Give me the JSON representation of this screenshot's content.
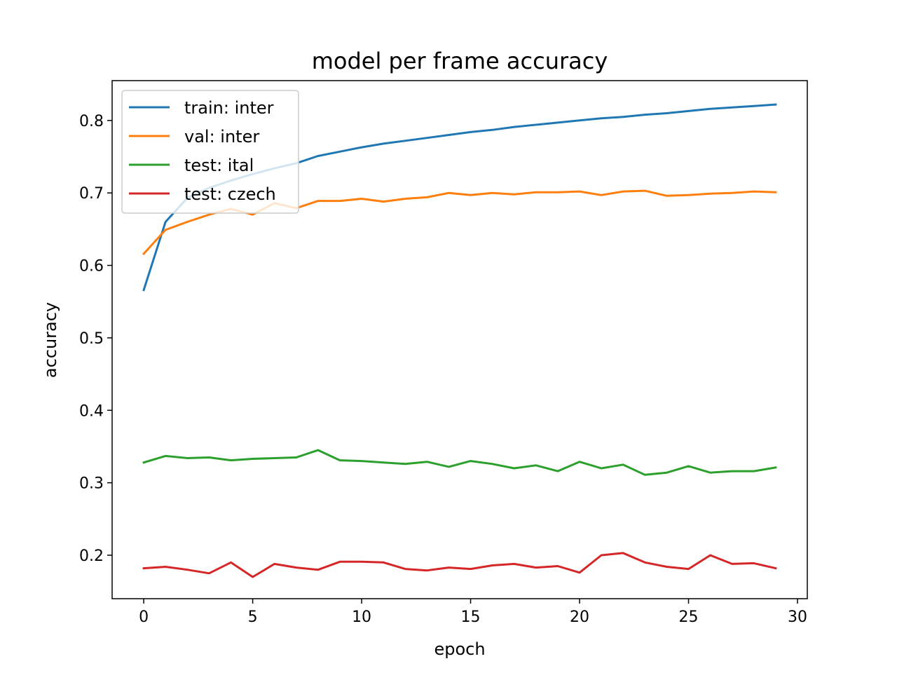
{
  "chart_data": {
    "type": "line",
    "title": "model per frame accuracy",
    "xlabel": "epoch",
    "ylabel": "accuracy",
    "xlim": [
      -1.45,
      30.45
    ],
    "ylim": [
      0.14,
      0.855
    ],
    "xticks": [
      0,
      5,
      10,
      15,
      20,
      25,
      30
    ],
    "xtick_labels": [
      "0",
      "5",
      "10",
      "15",
      "20",
      "25",
      "30"
    ],
    "yticks": [
      0.2,
      0.3,
      0.4,
      0.5,
      0.6,
      0.7,
      0.8
    ],
    "ytick_labels": [
      "0.2",
      "0.3",
      "0.4",
      "0.5",
      "0.6",
      "0.7",
      "0.8"
    ],
    "legend_position": "top-left",
    "grid": false,
    "x": [
      0,
      1,
      2,
      3,
      4,
      5,
      6,
      7,
      8,
      9,
      10,
      11,
      12,
      13,
      14,
      15,
      16,
      17,
      18,
      19,
      20,
      21,
      22,
      23,
      24,
      25,
      26,
      27,
      28,
      29
    ],
    "series": [
      {
        "name": "train: inter",
        "color": "#1f77b4",
        "values": [
          0.566,
          0.66,
          0.693,
          0.707,
          0.717,
          0.726,
          0.734,
          0.741,
          0.751,
          0.757,
          0.763,
          0.768,
          0.772,
          0.776,
          0.78,
          0.784,
          0.787,
          0.791,
          0.794,
          0.797,
          0.8,
          0.803,
          0.805,
          0.808,
          0.81,
          0.813,
          0.816,
          0.818,
          0.82,
          0.822
        ]
      },
      {
        "name": "val: inter",
        "color": "#ff7f0e",
        "values": [
          0.616,
          0.649,
          0.66,
          0.67,
          0.678,
          0.67,
          0.686,
          0.679,
          0.689,
          0.689,
          0.692,
          0.688,
          0.692,
          0.694,
          0.7,
          0.697,
          0.7,
          0.698,
          0.701,
          0.701,
          0.702,
          0.697,
          0.702,
          0.703,
          0.696,
          0.697,
          0.699,
          0.7,
          0.702,
          0.701
        ]
      },
      {
        "name": "test: ital",
        "color": "#2ca02c",
        "values": [
          0.328,
          0.337,
          0.334,
          0.335,
          0.331,
          0.333,
          0.334,
          0.335,
          0.345,
          0.331,
          0.33,
          0.328,
          0.326,
          0.329,
          0.322,
          0.33,
          0.326,
          0.32,
          0.324,
          0.316,
          0.329,
          0.32,
          0.325,
          0.311,
          0.314,
          0.323,
          0.314,
          0.316,
          0.316,
          0.321
        ]
      },
      {
        "name": "test: czech",
        "color": "#d62728",
        "values": [
          0.182,
          0.184,
          0.18,
          0.175,
          0.19,
          0.17,
          0.188,
          0.183,
          0.18,
          0.191,
          0.191,
          0.19,
          0.181,
          0.179,
          0.183,
          0.181,
          0.186,
          0.188,
          0.183,
          0.185,
          0.176,
          0.2,
          0.203,
          0.19,
          0.184,
          0.181,
          0.2,
          0.188,
          0.189,
          0.182
        ]
      }
    ]
  }
}
